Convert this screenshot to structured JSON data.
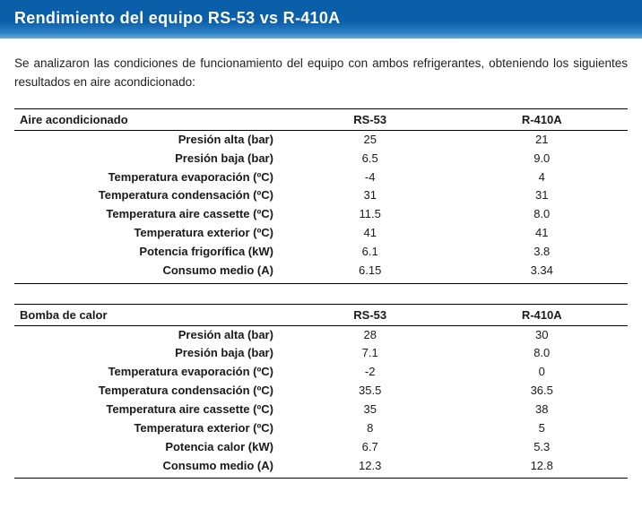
{
  "header": {
    "title": "Rendimiento del equipo RS-53 vs R-410A"
  },
  "intro": "Se analizaron las condiciones de funcionamiento del equipo con ambos refrigerantes, obteniendo los siguientes resultados en aire acondicionado:",
  "tables": [
    {
      "title": "Aire acondicionado",
      "col1": "RS-53",
      "col2": "R-410A",
      "rows": [
        {
          "label": "Presión alta (bar)",
          "v1": "25",
          "v2": "21"
        },
        {
          "label": "Presión baja (bar)",
          "v1": "6.5",
          "v2": "9.0"
        },
        {
          "label": "Temperatura evaporación (ºC)",
          "v1": "-4",
          "v2": "4"
        },
        {
          "label": "Temperatura condensación (ºC)",
          "v1": "31",
          "v2": "31"
        },
        {
          "label": "Temperatura aire cassette (ºC)",
          "v1": "11.5",
          "v2": "8.0"
        },
        {
          "label": "Temperatura exterior (ºC)",
          "v1": "41",
          "v2": "41"
        },
        {
          "label": "Potencia frigorífica (kW)",
          "v1": "6.1",
          "v2": "3.8"
        },
        {
          "label": "Consumo medio (A)",
          "v1": "6.15",
          "v2": "3.34"
        }
      ]
    },
    {
      "title": "Bomba de calor",
      "col1": "RS-53",
      "col2": "R-410A",
      "rows": [
        {
          "label": "Presión alta (bar)",
          "v1": "28",
          "v2": "30"
        },
        {
          "label": "Presión baja (bar)",
          "v1": "7.1",
          "v2": "8.0"
        },
        {
          "label": "Temperatura evaporación (ºC)",
          "v1": "-2",
          "v2": "0"
        },
        {
          "label": "Temperatura condensación (ºC)",
          "v1": "35.5",
          "v2": "36.5"
        },
        {
          "label": "Temperatura aire cassette (ºC)",
          "v1": "35",
          "v2": "38"
        },
        {
          "label": "Temperatura exterior (ºC)",
          "v1": "8",
          "v2": "5"
        },
        {
          "label": "Potencia calor (kW)",
          "v1": "6.7",
          "v2": "5.3"
        },
        {
          "label": "Consumo medio (A)",
          "v1": "12.3",
          "v2": "12.8"
        }
      ]
    }
  ]
}
